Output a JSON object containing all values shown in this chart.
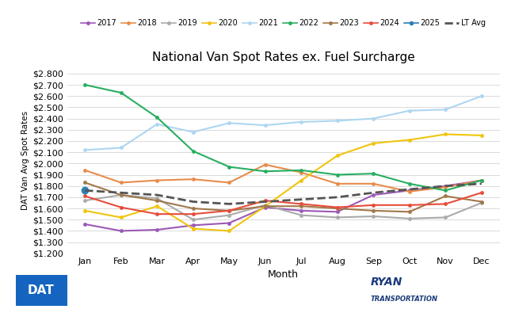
{
  "title": "National Van Spot Rates ex. Fuel Surcharge",
  "xlabel": "Month",
  "ylabel": "DAT Van Avg Spot Rates",
  "months": [
    "Jan",
    "Feb",
    "Mar",
    "Apr",
    "May",
    "Jun",
    "Jul",
    "Aug",
    "Sep",
    "Oct",
    "Nov",
    "Dec"
  ],
  "ylim": [
    1.2,
    2.85
  ],
  "yticks": [
    1.2,
    1.3,
    1.4,
    1.5,
    1.6,
    1.7,
    1.8,
    1.9,
    2.0,
    2.1,
    2.2,
    2.3,
    2.4,
    2.5,
    2.6,
    2.7,
    2.8
  ],
  "series": {
    "2017": {
      "color": "#9b59b6",
      "values": [
        1.46,
        1.4,
        1.41,
        1.45,
        1.47,
        1.61,
        1.58,
        1.57,
        1.72,
        1.76,
        1.8,
        1.85
      ],
      "marker": "o",
      "linewidth": 1.5,
      "linestyle": "-",
      "markersize": 3.5
    },
    "2018": {
      "color": "#e88c4a",
      "values": [
        1.94,
        1.83,
        1.85,
        1.86,
        1.83,
        1.99,
        1.92,
        1.82,
        1.82,
        1.75,
        1.79,
        1.85
      ],
      "marker": "o",
      "linewidth": 1.5,
      "linestyle": "-",
      "markersize": 3.5
    },
    "2019": {
      "color": "#aaaaaa",
      "values": [
        1.67,
        1.72,
        1.69,
        1.5,
        1.54,
        1.63,
        1.54,
        1.52,
        1.53,
        1.51,
        1.52,
        1.65
      ],
      "marker": "o",
      "linewidth": 1.5,
      "linestyle": "-",
      "markersize": 3.5
    },
    "2020": {
      "color": "#f1c40f",
      "values": [
        1.58,
        1.52,
        1.62,
        1.42,
        1.4,
        1.62,
        1.85,
        2.07,
        2.18,
        2.21,
        2.26,
        2.25
      ],
      "marker": "o",
      "linewidth": 1.5,
      "linestyle": "-",
      "markersize": 3.5
    },
    "2021": {
      "color": "#aed6f1",
      "values": [
        2.12,
        2.14,
        2.35,
        2.28,
        2.36,
        2.34,
        2.37,
        2.38,
        2.4,
        2.47,
        2.48,
        2.6
      ],
      "marker": "o",
      "linewidth": 1.5,
      "linestyle": "-",
      "markersize": 3.5
    },
    "2022": {
      "color": "#27ae60",
      "values": [
        2.7,
        2.63,
        2.41,
        2.11,
        1.97,
        1.93,
        1.94,
        1.9,
        1.91,
        1.82,
        1.76,
        1.85
      ],
      "marker": "o",
      "linewidth": 1.5,
      "linestyle": "-",
      "markersize": 3.5
    },
    "2023": {
      "color": "#a0784a",
      "values": [
        1.83,
        1.72,
        1.67,
        1.6,
        1.58,
        1.62,
        1.62,
        1.6,
        1.58,
        1.57,
        1.71,
        1.66
      ],
      "marker": "o",
      "linewidth": 1.5,
      "linestyle": "-",
      "markersize": 3.5
    },
    "2024": {
      "color": "#e74c3c",
      "values": [
        1.71,
        1.61,
        1.55,
        1.55,
        1.58,
        1.67,
        1.64,
        1.61,
        1.63,
        1.63,
        1.64,
        1.74
      ],
      "marker": "o",
      "linewidth": 1.5,
      "linestyle": "-",
      "markersize": 3.5
    },
    "2025": {
      "color": "#2980b9",
      "values": [
        1.76,
        null,
        null,
        null,
        null,
        null,
        null,
        null,
        null,
        null,
        null,
        null
      ],
      "marker": "o",
      "linewidth": 1.5,
      "linestyle": "-",
      "markersize": 7.0
    },
    "LT Avg": {
      "color": "#555555",
      "values": [
        1.76,
        1.74,
        1.72,
        1.66,
        1.64,
        1.66,
        1.68,
        1.7,
        1.74,
        1.77,
        1.8,
        1.82
      ],
      "marker": null,
      "linewidth": 2.0,
      "linestyle": "--",
      "markersize": 0
    }
  },
  "legend_order": [
    "2017",
    "2018",
    "2019",
    "2020",
    "2021",
    "2022",
    "2023",
    "2024",
    "2025",
    "LT Avg"
  ],
  "grid_color": "#cccccc",
  "title_fontsize": 11,
  "tick_fontsize": 8,
  "xlabel_fontsize": 9,
  "ylabel_fontsize": 7.5,
  "legend_fontsize": 7,
  "dat_bg_color": "#1565c0",
  "dat_text_color": "#ffffff",
  "ryan_color": "#1a3a7a"
}
